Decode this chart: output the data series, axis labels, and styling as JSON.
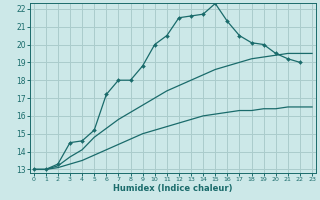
{
  "xlabel": "Humidex (Indice chaleur)",
  "bg_color": "#cce8e8",
  "grid_color": "#aacccc",
  "line_color": "#1a6b6b",
  "xlim": [
    0,
    23
  ],
  "ylim": [
    13,
    22
  ],
  "xticks": [
    0,
    1,
    2,
    3,
    4,
    5,
    6,
    7,
    8,
    9,
    10,
    11,
    12,
    13,
    14,
    15,
    16,
    17,
    18,
    19,
    20,
    21,
    22,
    23
  ],
  "yticks": [
    13,
    14,
    15,
    16,
    17,
    18,
    19,
    20,
    21,
    22
  ],
  "line1_x": [
    0,
    1,
    2,
    3,
    4,
    5,
    6,
    7,
    8,
    9,
    10,
    11,
    12,
    13,
    14,
    15,
    16,
    17,
    18,
    19,
    20,
    21,
    22
  ],
  "line1_y": [
    13.0,
    13.0,
    13.3,
    14.5,
    14.6,
    15.2,
    17.2,
    18.0,
    18.0,
    18.8,
    20.0,
    20.5,
    21.5,
    21.6,
    21.7,
    22.3,
    21.3,
    20.5,
    20.1,
    20.0,
    19.5,
    19.2,
    19.0
  ],
  "line2_x": [
    0,
    1,
    2,
    3,
    4,
    5,
    6,
    7,
    8,
    9,
    10,
    11,
    12,
    13,
    14,
    15,
    16,
    17,
    18,
    19,
    20,
    21,
    22,
    23
  ],
  "line2_y": [
    13.0,
    13.0,
    13.1,
    13.3,
    13.5,
    13.8,
    14.1,
    14.4,
    14.7,
    15.0,
    15.2,
    15.4,
    15.6,
    15.8,
    16.0,
    16.1,
    16.2,
    16.3,
    16.3,
    16.4,
    16.4,
    16.5,
    16.5,
    16.5
  ],
  "line3_x": [
    0,
    1,
    2,
    3,
    4,
    5,
    6,
    7,
    8,
    9,
    10,
    11,
    12,
    13,
    14,
    15,
    16,
    17,
    18,
    19,
    20,
    21,
    22,
    23
  ],
  "line3_y": [
    13.0,
    13.0,
    13.2,
    13.7,
    14.1,
    14.8,
    15.3,
    15.8,
    16.2,
    16.6,
    17.0,
    17.4,
    17.7,
    18.0,
    18.3,
    18.6,
    18.8,
    19.0,
    19.2,
    19.3,
    19.4,
    19.5,
    19.5,
    19.5
  ]
}
